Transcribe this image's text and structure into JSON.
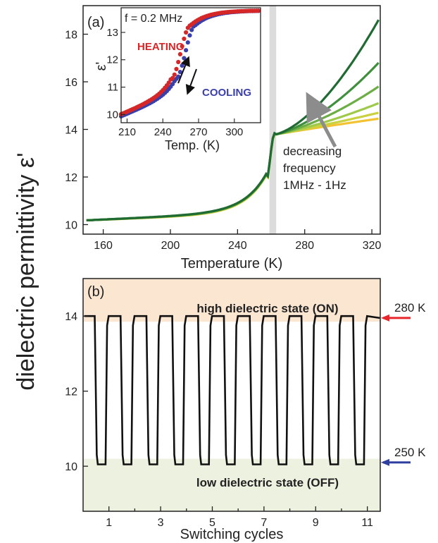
{
  "ylabel_shared": "dielectric permittivity ε'",
  "colors": {
    "heating": "#d62728",
    "cooling": "#3b3fa8",
    "on_band": "#fbe6d2",
    "off_band": "#edf2e0",
    "marker_280": "#e8262b",
    "marker_250": "#2e3f9e",
    "arrow_gray": "#8c8c8c",
    "transition_band": "#dcdcdc"
  },
  "chart_data": [
    {
      "id": "a",
      "type": "line",
      "panel_label": "(a)",
      "xlabel": "Temperature (K)",
      "ylabel": "",
      "xlim": [
        148,
        325
      ],
      "ylim": [
        9.6,
        19.2
      ],
      "xticks": [
        160,
        200,
        240,
        280,
        320
      ],
      "yticks": [
        10,
        12,
        14,
        16,
        18
      ],
      "shaded_x": [
        259,
        263
      ],
      "annotation": [
        "decreasing",
        "frequency",
        "1MHz - 1Hz"
      ],
      "frequency_direction": "1MHz → 1Hz",
      "series": [
        {
          "color": "#f2c230",
          "end": 14.45
        },
        {
          "color": "#c9d13e",
          "end": 14.7
        },
        {
          "color": "#9ec94a",
          "end": 15.1
        },
        {
          "color": "#6cae45",
          "end": 15.8
        },
        {
          "color": "#3f8f3d",
          "end": 16.8
        },
        {
          "color": "#1f6b32",
          "end": 18.6
        }
      ]
    },
    {
      "id": "inset",
      "type": "scatter",
      "annotation_text": "f = 0.2 MHz",
      "xlabel": "Temp. (K)",
      "ylabel": "ε'",
      "xlim": [
        205,
        322
      ],
      "ylim": [
        9.7,
        13.9
      ],
      "xticks": [
        210,
        240,
        270,
        300
      ],
      "yticks": [
        10,
        11,
        12,
        13
      ],
      "series": [
        {
          "name": "HEATING",
          "color": "#d62728",
          "shift": -3
        },
        {
          "name": "COOLING",
          "color": "#3b3fa8",
          "shift": 1
        }
      ]
    },
    {
      "id": "b",
      "type": "line",
      "panel_label": "(b)",
      "xlabel": "Switching cycles",
      "ylabel": "",
      "xlim": [
        0,
        11.5
      ],
      "ylim": [
        8.8,
        15.0
      ],
      "xticks": [
        1,
        3,
        5,
        7,
        9,
        11
      ],
      "yticks": [
        10,
        12,
        14
      ],
      "high_value": 14.0,
      "low_value": 10.05,
      "cycles": 11,
      "on_band_y": [
        13.85,
        15.0
      ],
      "off_band_y": [
        8.8,
        10.2
      ],
      "on_label": "high dielectric state (ON)",
      "off_label": "low dielectric state (OFF)",
      "marker_high": {
        "label": "280 K",
        "y": 13.95
      },
      "marker_low": {
        "label": "250 K",
        "y": 10.1
      }
    }
  ]
}
